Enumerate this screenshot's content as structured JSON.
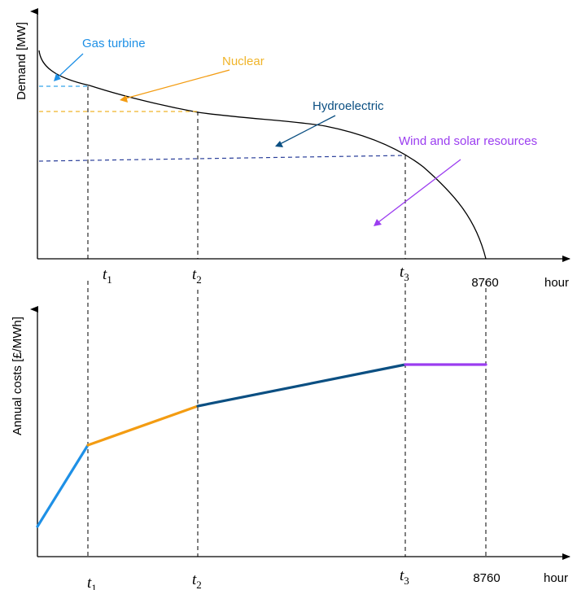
{
  "top_panel": {
    "ylabel": "Demand [MW]",
    "xlabel": "hour",
    "end_label": "8760",
    "ticks": [
      {
        "base": "t",
        "sub": "1"
      },
      {
        "base": "t",
        "sub": "2"
      },
      {
        "base": "t",
        "sub": "3"
      }
    ],
    "annotations": {
      "gas": "Gas turbine",
      "nuclear": "Nuclear",
      "hydro": "Hydroelectric",
      "wind": "Wind and solar resources"
    }
  },
  "bottom_panel": {
    "ylabel": "Annual costs [£/MWh]",
    "xlabel": "hour",
    "end_label": "8760",
    "ticks": [
      {
        "base": "t",
        "sub": "1"
      },
      {
        "base": "t",
        "sub": "2"
      },
      {
        "base": "t",
        "sub": "3"
      }
    ]
  },
  "colors": {
    "gas": "#1e90e6",
    "nuclear": "#f39c12",
    "nuclear_dash": "#f0b429",
    "hydro": "#0b4f82",
    "hydro_dash": "#2a3f9a",
    "wind": "#9b3df0",
    "axis": "#000000"
  }
}
